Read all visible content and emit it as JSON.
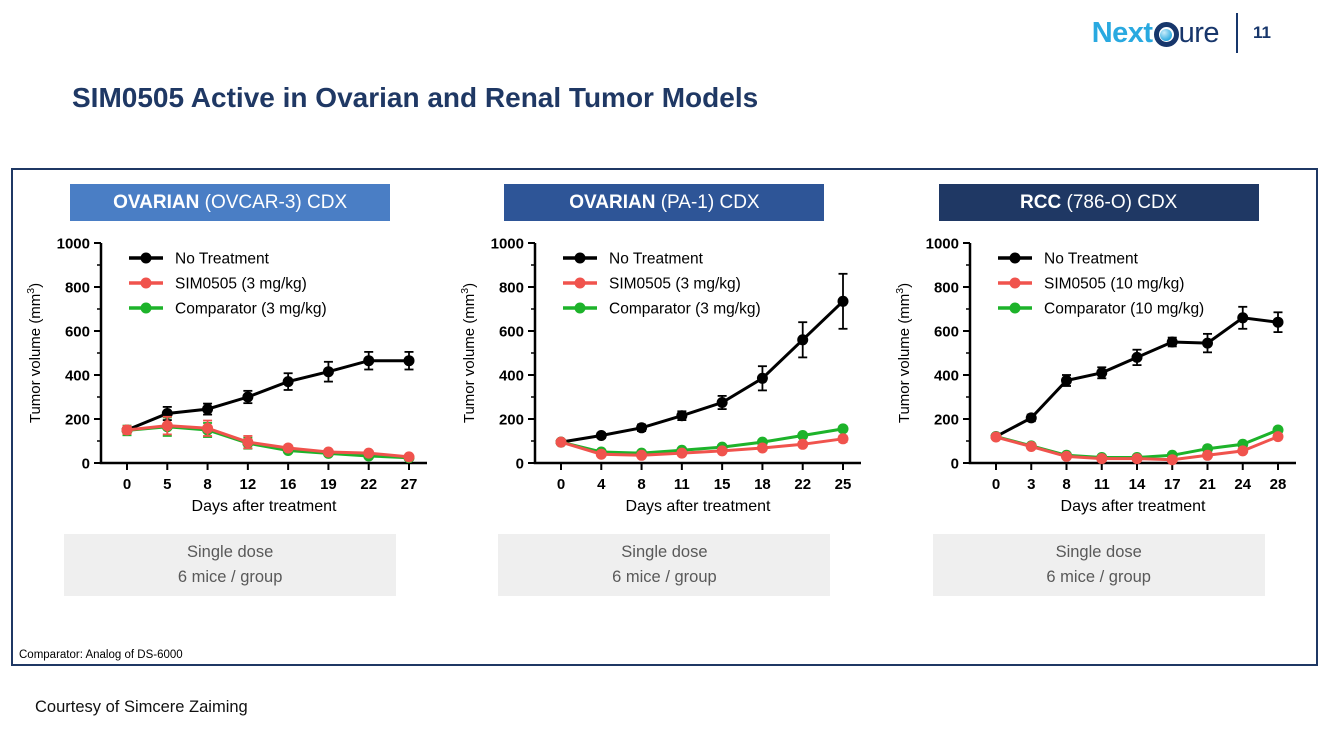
{
  "page_number": "11",
  "logo": {
    "part1": "Next",
    "part2": "ure"
  },
  "title": "SIM0505 Active in Ovarian and Renal Tumor Models",
  "footnote": "Comparator: Analog of DS-6000",
  "courtesy": "Courtesy of Simcere Zaiming",
  "colors": {
    "navy": "#1F3864",
    "logo_cyan": "#29A9E0",
    "logo_navy": "#17366B",
    "no_treatment": "#000000",
    "sim0505": "#F0534D",
    "comparator": "#1DB32A",
    "dose_box_bg": "#EFEFEF",
    "dose_box_text": "#595959"
  },
  "panels": [
    {
      "header_bold": "OVARIAN",
      "header_rest": " (OVCAR-3) CDX",
      "header_bg": "#4A7EC5",
      "dose_line1": "Single dose",
      "dose_line2": "6 mice / group"
    },
    {
      "header_bold": "OVARIAN",
      "header_rest": " (PA-1) CDX",
      "header_bg": "#2E5597",
      "dose_line1": "Single dose",
      "dose_line2": "6 mice / group"
    },
    {
      "header_bold": "RCC",
      "header_rest": " (786-O) CDX",
      "header_bg": "#1F3864",
      "dose_line1": "Single dose",
      "dose_line2": "6 mice / group"
    }
  ],
  "chart_data": [
    {
      "type": "line",
      "title": "OVARIAN (OVCAR-3) CDX",
      "x": [
        0,
        5,
        8,
        12,
        16,
        19,
        22,
        27
      ],
      "xlabel": "Days after treatment",
      "ylabel": "Tumor volume (mm³)",
      "ylim": [
        0,
        1000
      ],
      "yticks": [
        0,
        200,
        400,
        600,
        800,
        1000
      ],
      "legend_position": "top-left",
      "grid": false,
      "series": [
        {
          "name": "No Treatment",
          "color": "#000000",
          "values": [
            150,
            225,
            245,
            300,
            370,
            415,
            465,
            465
          ],
          "errors": [
            15,
            30,
            25,
            28,
            38,
            45,
            40,
            40
          ]
        },
        {
          "name": "SIM0505 (3 mg/kg)",
          "color": "#F0534D",
          "values": [
            150,
            170,
            158,
            95,
            68,
            50,
            45,
            28
          ],
          "errors": [
            18,
            40,
            35,
            28,
            12,
            8,
            8,
            6
          ]
        },
        {
          "name": "Comparator (3 mg/kg)",
          "color": "#1DB32A",
          "values": [
            148,
            165,
            150,
            90,
            57,
            44,
            32,
            24
          ],
          "errors": [
            22,
            42,
            32,
            25,
            10,
            7,
            6,
            5
          ]
        }
      ]
    },
    {
      "type": "line",
      "title": "OVARIAN (PA-1) CDX",
      "x": [
        0,
        4,
        8,
        11,
        15,
        18,
        22,
        25
      ],
      "xlabel": "Days after treatment",
      "ylabel": "Tumor volume (mm³)",
      "ylim": [
        0,
        1000
      ],
      "yticks": [
        0,
        200,
        400,
        600,
        800,
        1000
      ],
      "legend_position": "top-left",
      "grid": false,
      "series": [
        {
          "name": "No Treatment",
          "color": "#000000",
          "values": [
            95,
            125,
            160,
            215,
            275,
            385,
            560,
            735
          ],
          "errors": [
            10,
            12,
            15,
            20,
            30,
            55,
            80,
            125
          ]
        },
        {
          "name": "SIM0505 (3 mg/kg)",
          "color": "#F0534D",
          "values": [
            95,
            40,
            35,
            45,
            55,
            68,
            85,
            110
          ],
          "errors": [
            8,
            5,
            5,
            5,
            6,
            8,
            10,
            14
          ]
        },
        {
          "name": "Comparator (3 mg/kg)",
          "color": "#1DB32A",
          "values": [
            95,
            50,
            45,
            58,
            72,
            95,
            125,
            155
          ],
          "errors": [
            8,
            5,
            5,
            5,
            6,
            8,
            10,
            12
          ]
        }
      ]
    },
    {
      "type": "line",
      "title": "RCC (786-O) CDX",
      "x": [
        0,
        3,
        8,
        11,
        14,
        17,
        21,
        24,
        28
      ],
      "xlabel": "Days after treatment",
      "ylabel": "Tumor volume (mm³)",
      "ylim": [
        0,
        1000
      ],
      "yticks": [
        0,
        200,
        400,
        600,
        800,
        1000
      ],
      "legend_position": "top-left",
      "grid": false,
      "series": [
        {
          "name": "No Treatment",
          "color": "#000000",
          "values": [
            120,
            205,
            375,
            410,
            480,
            550,
            545,
            660,
            640
          ],
          "errors": [
            10,
            15,
            25,
            25,
            35,
            20,
            42,
            50,
            45
          ]
        },
        {
          "name": "SIM0505 (10 mg/kg)",
          "color": "#F0534D",
          "values": [
            118,
            75,
            30,
            20,
            20,
            15,
            35,
            55,
            120
          ],
          "errors": [
            8,
            10,
            5,
            4,
            4,
            4,
            5,
            8,
            12
          ]
        },
        {
          "name": "Comparator (10 mg/kg)",
          "color": "#1DB32A",
          "values": [
            120,
            78,
            35,
            25,
            25,
            35,
            65,
            85,
            150
          ],
          "errors": [
            8,
            10,
            5,
            4,
            4,
            5,
            7,
            10,
            12
          ]
        }
      ]
    }
  ]
}
